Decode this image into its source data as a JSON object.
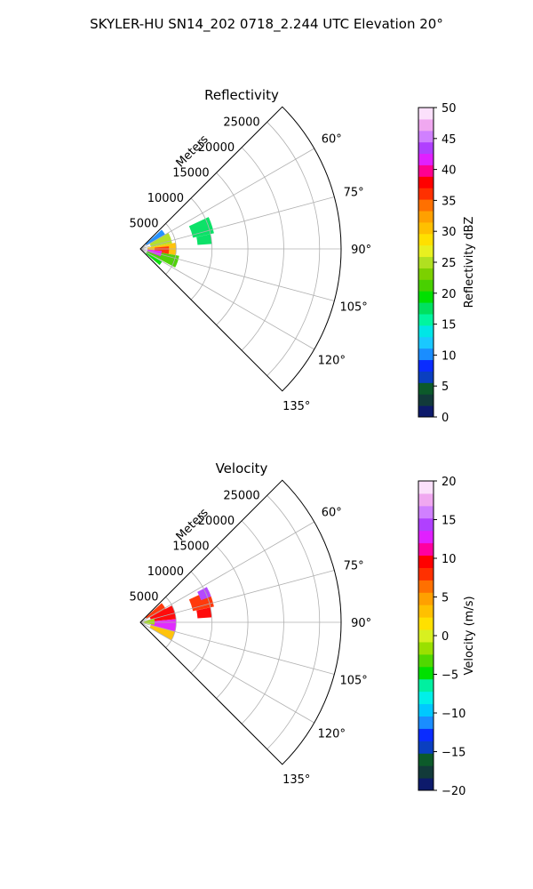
{
  "suptitle": "SKYLER-HU  SN14_202  0718_2.244 UTC Elevation 20°",
  "chart_data": [
    {
      "type": "polar-sector",
      "title": "Reflectivity",
      "range_label": "Meters",
      "range_ticks": [
        5000,
        10000,
        15000,
        20000,
        25000
      ],
      "range_tick_labels": [
        "5000",
        "10000",
        "15000",
        "20000",
        "25000"
      ],
      "range_max": 28000,
      "angle_ticks": [
        60,
        75,
        90,
        105,
        120,
        135
      ],
      "angle_tick_labels": [
        "60°",
        "75°",
        "90°",
        "105°",
        "120°",
        "135°"
      ],
      "angle_range": [
        45,
        135
      ],
      "grid": true,
      "colorbar": {
        "label": "Reflectivity dBZ",
        "range": [
          0,
          50
        ],
        "ticks": [
          0,
          5,
          10,
          15,
          20,
          25,
          30,
          35,
          40,
          45,
          50
        ],
        "tick_labels": [
          "0",
          "5",
          "10",
          "15",
          "20",
          "25",
          "30",
          "35",
          "40",
          "45",
          "50"
        ],
        "colors": [
          "#0d1a6b",
          "#123a3a",
          "#0c5a2a",
          "#0a3fc0",
          "#0a2cff",
          "#1a8dff",
          "#1ac8ff",
          "#00e6e6",
          "#00f5a0",
          "#00e060",
          "#00e000",
          "#48d000",
          "#7cd000",
          "#b0e020",
          "#e8f020",
          "#ffe000",
          "#ffc000",
          "#ffa000",
          "#ff7000",
          "#ff3000",
          "#ff0000",
          "#ff0090",
          "#e020ff",
          "#b040ff",
          "#d080ff",
          "#f0a8f0",
          "#fbe0fb"
        ]
      },
      "data": [
        {
          "az_range": [
            48,
            60
          ],
          "range_m": [
            1000,
            4000
          ],
          "value": 10
        },
        {
          "az_range": [
            60,
            80
          ],
          "range_m": [
            1500,
            4500
          ],
          "value": 25
        },
        {
          "az_range": [
            80,
            100
          ],
          "range_m": [
            1000,
            5000
          ],
          "value": 30
        },
        {
          "az_range": [
            100,
            118
          ],
          "range_m": [
            1000,
            5500
          ],
          "value": 22
        },
        {
          "az_range": [
            85,
            100
          ],
          "range_m": [
            2000,
            4000
          ],
          "value": 36
        },
        {
          "az_range": [
            95,
            110
          ],
          "range_m": [
            1000,
            3000
          ],
          "value": 42
        },
        {
          "az_range": [
            120,
            130
          ],
          "range_m": [
            1000,
            3500
          ],
          "value": 20
        },
        {
          "az_range": [
            65,
            78
          ],
          "range_m": [
            7500,
            10500
          ],
          "value": 17
        },
        {
          "az_range": [
            78,
            86
          ],
          "range_m": [
            8000,
            10000
          ],
          "value": 17
        }
      ]
    },
    {
      "type": "polar-sector",
      "title": "Velocity",
      "range_label": "Meters",
      "range_ticks": [
        5000,
        10000,
        15000,
        20000,
        25000
      ],
      "range_tick_labels": [
        "5000",
        "10000",
        "15000",
        "20000",
        "25000"
      ],
      "range_max": 28000,
      "angle_ticks": [
        60,
        75,
        90,
        105,
        120,
        135
      ],
      "angle_tick_labels": [
        "60°",
        "75°",
        "90°",
        "105°",
        "120°",
        "135°"
      ],
      "angle_range": [
        45,
        135
      ],
      "grid": true,
      "colorbar": {
        "label": "Velocity (m/s)",
        "range": [
          -20,
          20
        ],
        "ticks": [
          -20,
          -15,
          -10,
          -5,
          0,
          5,
          10,
          15,
          20
        ],
        "tick_labels": [
          "−20",
          "−15",
          "−10",
          "−5",
          "0",
          "5",
          "10",
          "15",
          "20"
        ],
        "colors": [
          "#0d1a6b",
          "#123a3a",
          "#0c5a2a",
          "#0a3fc0",
          "#0a2cff",
          "#1a8dff",
          "#00c8ff",
          "#00f0e8",
          "#00f0a0",
          "#00e000",
          "#50d800",
          "#9ae000",
          "#d8f020",
          "#ffe000",
          "#ffc000",
          "#ffa000",
          "#ff7000",
          "#ff3000",
          "#ff0000",
          "#ff00a0",
          "#e020ff",
          "#b040ff",
          "#d080ff",
          "#f0a8f0",
          "#fbe0fb"
        ]
      },
      "data": [
        {
          "az_range": [
            48,
            62
          ],
          "range_m": [
            1000,
            4000
          ],
          "value": 8
        },
        {
          "az_range": [
            62,
            85
          ],
          "range_m": [
            1500,
            5000
          ],
          "value": 10
        },
        {
          "az_range": [
            85,
            105
          ],
          "range_m": [
            1500,
            5000
          ],
          "value": 13
        },
        {
          "az_range": [
            105,
            120
          ],
          "range_m": [
            1500,
            5000
          ],
          "value": 3
        },
        {
          "az_range": [
            75,
            100
          ],
          "range_m": [
            500,
            2000
          ],
          "value": -2
        },
        {
          "az_range": [
            65,
            78
          ],
          "range_m": [
            7500,
            10500
          ],
          "value": 8
        },
        {
          "az_range": [
            62,
            70
          ],
          "range_m": [
            9000,
            10500
          ],
          "value": 14
        },
        {
          "az_range": [
            78,
            86
          ],
          "range_m": [
            8000,
            10000
          ],
          "value": 9
        }
      ]
    }
  ]
}
